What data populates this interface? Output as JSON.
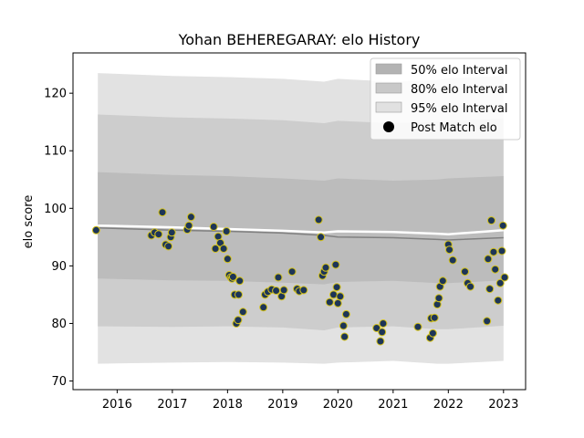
{
  "chart_data": {
    "type": "scatter",
    "title": "Yohan BEHEREGARAY: elo History",
    "xlabel": "",
    "ylabel": "elo score",
    "xlim": [
      2015.2,
      2023.4
    ],
    "ylim": [
      68.5,
      127
    ],
    "x_ticks": [
      2016,
      2017,
      2018,
      2019,
      2020,
      2021,
      2022,
      2023
    ],
    "y_ticks": [
      70,
      80,
      90,
      100,
      110,
      120
    ],
    "grid": false,
    "legend_position": "top-right",
    "legend": [
      {
        "label": "50% elo Interval",
        "color": "#b3b3b3"
      },
      {
        "label": "80% elo Interval",
        "color": "#c8c8c8"
      },
      {
        "label": "95% elo Interval",
        "color": "#e1e1e1"
      },
      {
        "label": "Post Match elo",
        "color": "#000000"
      }
    ],
    "colors": {
      "band95": "#e2e2e2",
      "band80": "#cdcdcd",
      "band50": "#bcbcbc",
      "mean_line": "#808080",
      "median_line": "#ffffff",
      "point_fill": "#1d3557",
      "point_edge": "#d4c21a"
    },
    "bands": {
      "x": [
        2015.65,
        2017.0,
        2018.0,
        2019.0,
        2019.75,
        2020.0,
        2021.0,
        2021.8,
        2022.0,
        2023.0
      ],
      "p95_upper": [
        123.5,
        123.0,
        122.8,
        122.5,
        122.0,
        122.5,
        122.0,
        122.3,
        122.6,
        123.0
      ],
      "p95_lower": [
        73.0,
        73.2,
        73.3,
        73.2,
        73.0,
        73.2,
        73.5,
        73.0,
        73.0,
        73.5
      ],
      "p80_upper": [
        116.3,
        115.8,
        115.6,
        115.3,
        114.8,
        115.2,
        114.8,
        115.0,
        115.2,
        115.6
      ],
      "p80_lower": [
        79.5,
        79.4,
        79.5,
        79.3,
        78.8,
        79.3,
        79.5,
        79.0,
        79.0,
        79.6
      ],
      "p50_upper": [
        106.3,
        105.8,
        105.6,
        105.2,
        104.8,
        105.2,
        104.8,
        105.0,
        105.2,
        105.6
      ],
      "p50_lower": [
        87.8,
        87.5,
        87.4,
        87.1,
        86.8,
        87.2,
        87.4,
        87.0,
        87.0,
        87.5
      ],
      "mean": [
        96.6,
        96.2,
        96.0,
        95.7,
        95.3,
        95.0,
        94.9,
        94.6,
        94.5,
        94.9
      ],
      "median": [
        97.0,
        96.7,
        96.4,
        96.1,
        95.8,
        96.0,
        95.9,
        95.6,
        95.5,
        96.2
      ]
    },
    "points": {
      "x": [
        2015.62,
        2016.62,
        2016.68,
        2016.75,
        2016.82,
        2016.88,
        2016.93,
        2016.97,
        2016.99,
        2017.27,
        2017.3,
        2017.34,
        2017.75,
        2017.78,
        2017.83,
        2017.87,
        2017.93,
        2017.98,
        2018.0,
        2018.03,
        2018.06,
        2018.08,
        2018.1,
        2018.13,
        2018.16,
        2018.19,
        2018.2,
        2018.22,
        2018.28,
        2018.65,
        2018.68,
        2018.73,
        2018.8,
        2018.88,
        2018.92,
        2018.98,
        2019.02,
        2019.17,
        2019.26,
        2019.3,
        2019.38,
        2019.65,
        2019.69,
        2019.72,
        2019.75,
        2019.78,
        2019.85,
        2019.92,
        2019.96,
        2019.98,
        2020.0,
        2020.04,
        2020.1,
        2020.12,
        2020.15,
        2020.7,
        2020.77,
        2020.8,
        2020.82,
        2021.45,
        2021.67,
        2021.69,
        2021.72,
        2021.75,
        2021.8,
        2021.83,
        2021.85,
        2021.9,
        2022.0,
        2022.02,
        2022.08,
        2022.3,
        2022.35,
        2022.4,
        2022.7,
        2022.72,
        2022.75,
        2022.78,
        2022.82,
        2022.85,
        2022.9,
        2022.94,
        2022.97,
        2022.99,
        2023.02
      ],
      "y": [
        96.2,
        95.3,
        95.8,
        95.5,
        99.3,
        93.7,
        93.4,
        95.0,
        95.8,
        96.3,
        97.0,
        98.5,
        96.8,
        93.0,
        95.1,
        94.0,
        93.0,
        96.0,
        91.2,
        88.4,
        88.0,
        87.8,
        88.1,
        85.0,
        80.0,
        80.6,
        85.0,
        87.4,
        82.0,
        82.8,
        85.0,
        85.5,
        85.9,
        85.7,
        88.0,
        84.7,
        85.8,
        89.0,
        86.0,
        85.6,
        85.8,
        98.0,
        95.0,
        88.3,
        89.0,
        89.7,
        83.7,
        85.0,
        90.2,
        86.3,
        83.5,
        84.7,
        79.6,
        77.7,
        81.6,
        79.2,
        76.9,
        78.5,
        80.0,
        79.4,
        77.5,
        80.9,
        78.3,
        81.0,
        83.3,
        84.4,
        86.4,
        87.4,
        93.7,
        92.8,
        91.0,
        89.0,
        87.0,
        86.4,
        80.4,
        91.2,
        86.0,
        97.9,
        92.4,
        89.4,
        84.0,
        87.0,
        92.6,
        97.0,
        88.0
      ]
    }
  }
}
